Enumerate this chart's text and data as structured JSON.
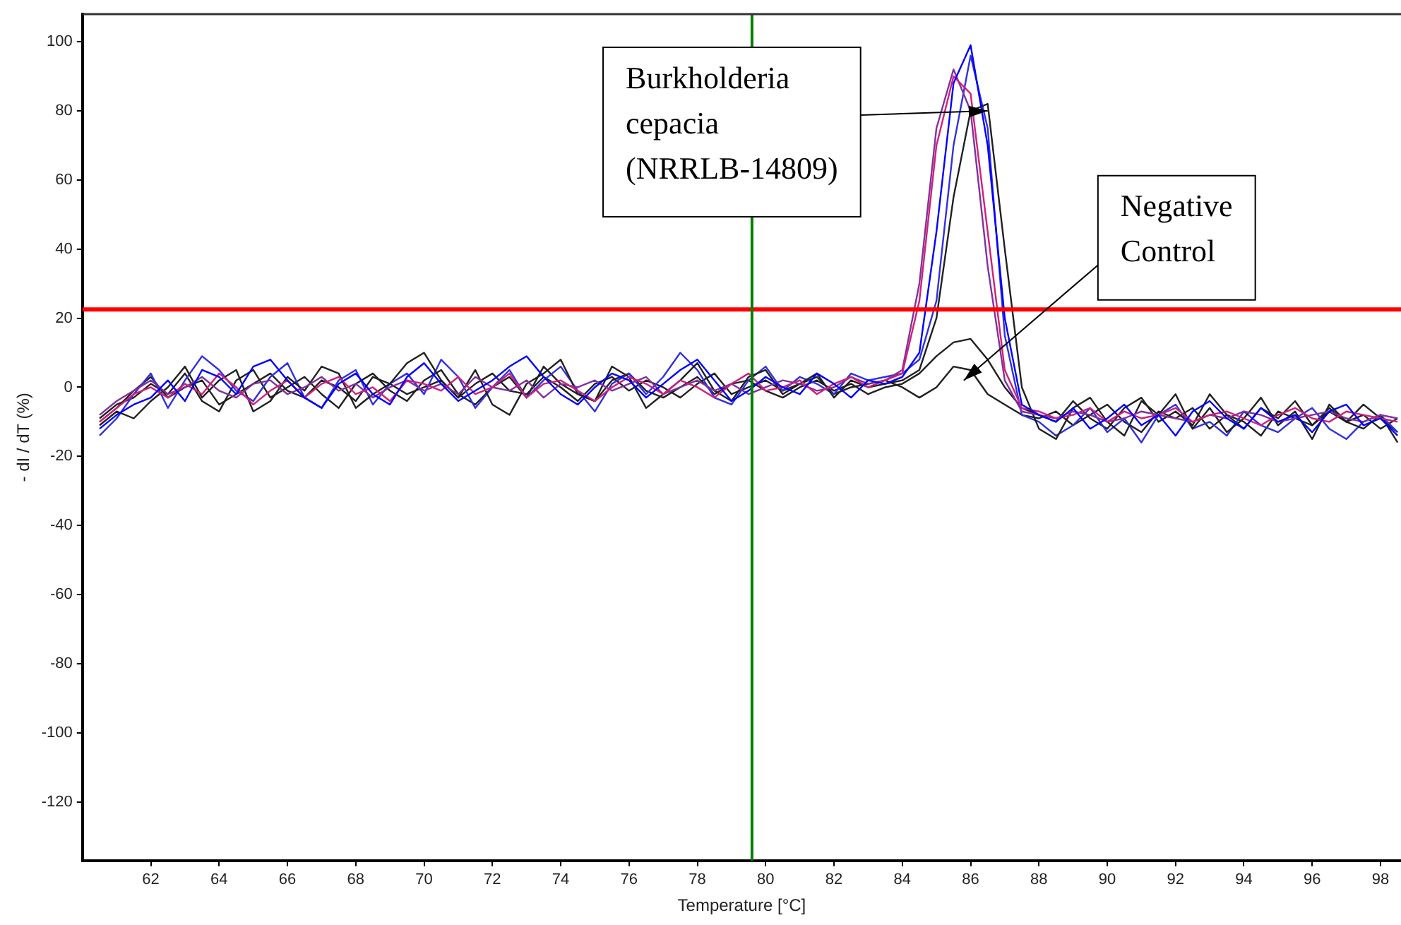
{
  "chart_data": {
    "type": "line",
    "xlabel": "Temperature [°C]",
    "ylabel": "- dI / dT (%)",
    "x": [
      60.5,
      61,
      61.5,
      62,
      62.5,
      63,
      63.5,
      64,
      64.5,
      65,
      65.5,
      66,
      66.5,
      67,
      67.5,
      68,
      68.5,
      69,
      69.5,
      70,
      70.5,
      71,
      71.5,
      72,
      72.5,
      73,
      73.5,
      74,
      74.5,
      75,
      75.5,
      76,
      76.5,
      77,
      77.5,
      78,
      78.5,
      79,
      79.5,
      80,
      80.5,
      81,
      81.5,
      82,
      82.5,
      83,
      83.5,
      84,
      84.5,
      85,
      85.5,
      86,
      86.5,
      87,
      87.5,
      88,
      88.5,
      89,
      89.5,
      90,
      90.5,
      91,
      91.5,
      92,
      92.5,
      93,
      93.5,
      94,
      94.5,
      95,
      95.5,
      96,
      96.5,
      97,
      97.5,
      98,
      98.5
    ],
    "series": [
      {
        "color": "#0000ff",
        "values": [
          -12,
          -8,
          -5,
          -3,
          2,
          -4,
          5,
          3,
          -2,
          6,
          8,
          2,
          -3,
          -6,
          1,
          4,
          -2,
          -5,
          3,
          7,
          1,
          -4,
          -1,
          2,
          6,
          9,
          3,
          -2,
          -5,
          0,
          4,
          2,
          -3,
          1,
          5,
          8,
          2,
          -4,
          -1,
          3,
          0,
          -2,
          4,
          1,
          -3,
          2,
          1,
          3,
          10,
          45,
          88,
          99,
          70,
          20,
          -5,
          -8,
          -10,
          -6,
          -12,
          -9,
          -5,
          -11,
          -8,
          -14,
          -7,
          -4,
          -9,
          -12,
          -6,
          -10,
          -8,
          -13,
          -7,
          -5,
          -11,
          -9,
          -14
        ]
      },
      {
        "color": "#d0207a",
        "values": [
          -10,
          -6,
          -2,
          0,
          -3,
          1,
          -2,
          4,
          0,
          -5,
          -1,
          2,
          -3,
          1,
          3,
          -2,
          0,
          -4,
          2,
          1,
          -1,
          3,
          -2,
          0,
          4,
          -3,
          1,
          2,
          -1,
          -4,
          0,
          3,
          1,
          -2,
          2,
          0,
          -3,
          1,
          4,
          -1,
          0,
          2,
          -2,
          1,
          3,
          0,
          2,
          4,
          25,
          70,
          90,
          85,
          45,
          5,
          -6,
          -7,
          -9,
          -8,
          -6,
          -10,
          -7,
          -9,
          -8,
          -6,
          -10,
          -8,
          -7,
          -9,
          -11,
          -8,
          -6,
          -9,
          -10,
          -7,
          -8,
          -9,
          -10
        ]
      },
      {
        "color": "#8030a0",
        "values": [
          -8,
          -4,
          -1,
          2,
          -2,
          0,
          3,
          -1,
          -3,
          1,
          2,
          -2,
          0,
          3,
          -1,
          1,
          -3,
          0,
          2,
          -1,
          1,
          -2,
          3,
          0,
          -1,
          2,
          -3,
          1,
          0,
          2,
          -1,
          1,
          3,
          -2,
          0,
          2,
          -1,
          1,
          -2,
          0,
          2,
          1,
          -1,
          0,
          3,
          1,
          2,
          5,
          30,
          75,
          92,
          80,
          35,
          2,
          -7,
          -8,
          -9,
          -7,
          -8,
          -10,
          -9,
          -7,
          -8,
          -9,
          -10,
          -8,
          -9,
          -7,
          -8,
          -10,
          -9,
          -8,
          -7,
          -9,
          -10,
          -8,
          -9
        ]
      },
      {
        "color": "#202020",
        "values": [
          -11,
          -7,
          -9,
          -4,
          0,
          6,
          -3,
          2,
          5,
          -7,
          -4,
          3,
          -1,
          6,
          4,
          -6,
          -2,
          1,
          7,
          10,
          2,
          -3,
          5,
          -5,
          -8,
          1,
          4,
          8,
          -2,
          -4,
          6,
          3,
          -6,
          -2,
          2,
          7,
          -1,
          -4,
          3,
          5,
          -2,
          1,
          4,
          -3,
          2,
          0,
          1,
          2,
          5,
          20,
          55,
          80,
          82,
          40,
          0,
          -12,
          -15,
          -6,
          -3,
          -10,
          -14,
          -4,
          -8,
          -2,
          -12,
          -6,
          -13,
          -9,
          -3,
          -11,
          -7,
          -15,
          -5,
          -10,
          -12,
          -8,
          -16
        ]
      },
      {
        "color": "#3030e0",
        "values": [
          -14,
          -9,
          -2,
          4,
          -6,
          2,
          9,
          5,
          -1,
          -4,
          3,
          7,
          -3,
          -6,
          2,
          5,
          -5,
          1,
          4,
          -2,
          8,
          3,
          -6,
          0,
          5,
          -3,
          2,
          6,
          -1,
          -7,
          1,
          4,
          -2,
          3,
          10,
          5,
          -3,
          -5,
          2,
          6,
          -1,
          3,
          1,
          -2,
          4,
          2,
          3,
          4,
          8,
          25,
          70,
          96,
          75,
          15,
          -8,
          -10,
          -14,
          -11,
          -6,
          -13,
          -9,
          -16,
          -8,
          -5,
          -12,
          -10,
          -14,
          -7,
          -11,
          -13,
          -9,
          -6,
          -12,
          -15,
          -10,
          -8,
          -13
        ]
      },
      {
        "color": "#202020",
        "values": [
          -9,
          -5,
          -3,
          1,
          -2,
          4,
          -4,
          -7,
          2,
          5,
          -3,
          0,
          3,
          -2,
          -6,
          1,
          4,
          -1,
          -4,
          2,
          5,
          -2,
          -5,
          0,
          3,
          -3,
          6,
          1,
          -2,
          -4,
          2,
          4,
          -1,
          -3,
          0,
          3,
          -2,
          1,
          2,
          -1,
          -3,
          0,
          2,
          -1,
          1,
          -2,
          0,
          1,
          4,
          9,
          13,
          14,
          8,
          0,
          -6,
          -8,
          -10,
          -4,
          -9,
          -12,
          -6,
          -3,
          -10,
          -7,
          -11,
          -2,
          -8,
          -12,
          -6,
          -9,
          -4,
          -11,
          -7,
          -10,
          -5,
          -9,
          -13
        ]
      },
      {
        "color": "#202020",
        "values": [
          -10,
          -6,
          -1,
          3,
          -3,
          0,
          2,
          -5,
          -2,
          1,
          4,
          -1,
          -3,
          2,
          0,
          -4,
          3,
          1,
          -2,
          0,
          2,
          -3,
          1,
          4,
          -1,
          -2,
          3,
          0,
          -4,
          1,
          3,
          -1,
          2,
          0,
          -3,
          1,
          4,
          -2,
          0,
          2,
          -1,
          1,
          3,
          -2,
          0,
          1,
          2,
          0,
          -3,
          0,
          6,
          5,
          -2,
          -5,
          -8,
          -9,
          -7,
          -11,
          -8,
          -5,
          -10,
          -13,
          -7,
          -9,
          -6,
          -12,
          -8,
          -10,
          -14,
          -7,
          -9,
          -11,
          -6,
          -10,
          -8,
          -12,
          -9
        ]
      }
    ],
    "xlim": [
      60,
      98.6
    ],
    "ylim": [
      -137,
      108
    ],
    "xticks": [
      62,
      64,
      66,
      68,
      70,
      72,
      74,
      76,
      78,
      80,
      82,
      84,
      86,
      88,
      90,
      92,
      94,
      96,
      98
    ],
    "yticks": [
      -120,
      -100,
      -80,
      -60,
      -40,
      -20,
      0,
      20,
      40,
      60,
      80,
      100
    ],
    "ref_lines": [
      {
        "axis": "y",
        "value": 22.5,
        "color": "#ff0000"
      },
      {
        "axis": "x",
        "value": 79.6,
        "color": "#008000"
      }
    ],
    "annotations": [
      {
        "text": "Burkholderia\ncepacia\n(NRRLB-14809)",
        "x": 86.5,
        "y": 80
      },
      {
        "text": "Negative\nControl",
        "x": 85.8,
        "y": 2
      }
    ],
    "grid": false,
    "legend": false,
    "marker": "none",
    "line_style": "solid"
  }
}
